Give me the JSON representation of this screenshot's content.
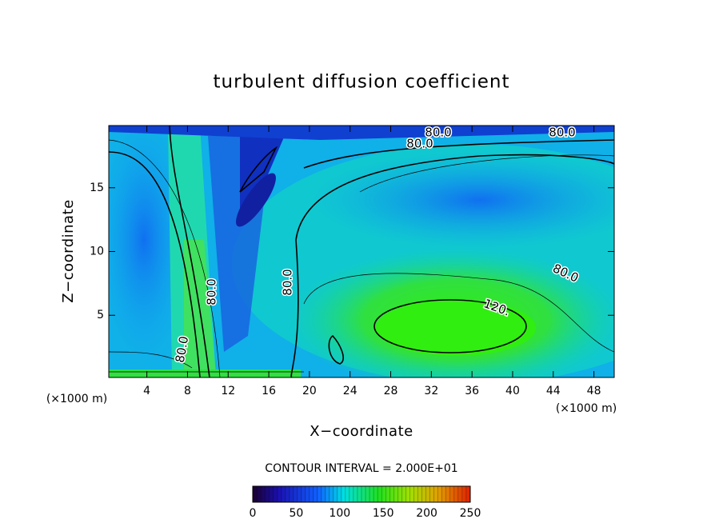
{
  "chart_data": {
    "type": "contour",
    "title": "turbulent diffusion coefficient",
    "xlabel": "X−coordinate",
    "ylabel": "Z−coordinate",
    "x_unit_left": "(×1000 m)",
    "x_unit_right": "(×1000 m)",
    "contour_interval_text": "CONTOUR INTERVAL = 2.000E+01",
    "xlim": [
      0.25,
      50
    ],
    "xticks": [
      4,
      8,
      12,
      16,
      20,
      24,
      28,
      32,
      36,
      40,
      44,
      48
    ],
    "ylim": [
      0.125,
      19.875
    ],
    "yticks": [
      5,
      10,
      15
    ],
    "contour_labels": [
      {
        "value": 80,
        "label": "80.0"
      },
      {
        "value": 80,
        "label": "80.0"
      },
      {
        "value": 80,
        "label": "80.0"
      },
      {
        "value": 80,
        "label": "80.0"
      },
      {
        "value": 80,
        "label": "80.0"
      },
      {
        "value": 80,
        "label": "80.0"
      },
      {
        "value": 80,
        "label": "80.0"
      },
      {
        "value": 120,
        "label": "120."
      }
    ],
    "colorbar": {
      "lim": [
        0,
        250
      ],
      "ticks": [
        0,
        50,
        100,
        150,
        200,
        250
      ]
    }
  }
}
